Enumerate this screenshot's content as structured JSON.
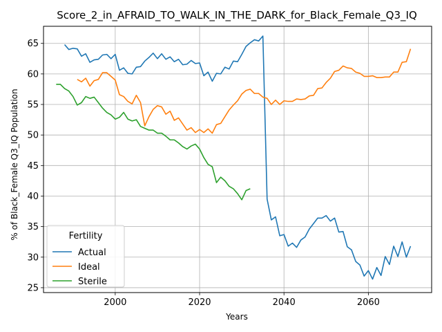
{
  "chart_data": {
    "type": "line",
    "title": "Score_2_in_AFRAID_TO_WALK_IN_THE_DARK_for_Black_Female_Q3_IQ",
    "xlabel": "Years",
    "ylabel": "% of Black_Female Q3_IQ Population",
    "xlim": [
      1983,
      2075
    ],
    "ylim": [
      24.2,
      67.8
    ],
    "xticks": [
      2000,
      2020,
      2040,
      2060
    ],
    "yticks": [
      25,
      30,
      35,
      40,
      45,
      50,
      55,
      60,
      65
    ],
    "grid": true,
    "legend": {
      "title": "Fertility",
      "placement": "lower-left"
    },
    "series": [
      {
        "name": "Actual",
        "color": "#1f77b4",
        "x": [
          1988,
          1989,
          1990,
          1991,
          1992,
          1993,
          1994,
          1995,
          1996,
          1997,
          1998,
          1999,
          2000,
          2001,
          2002,
          2003,
          2004,
          2005,
          2006,
          2007,
          2008,
          2009,
          2010,
          2011,
          2012,
          2013,
          2014,
          2015,
          2016,
          2017,
          2018,
          2019,
          2020,
          2021,
          2022,
          2023,
          2024,
          2025,
          2026,
          2027,
          2028,
          2029,
          2030,
          2031,
          2032,
          2033,
          2034,
          2035,
          2036,
          2037,
          2038,
          2039,
          2040,
          2041,
          2042,
          2043,
          2044,
          2045,
          2046,
          2047,
          2048,
          2049,
          2050,
          2051,
          2052,
          2053,
          2054,
          2055,
          2056,
          2057,
          2058,
          2059,
          2060,
          2061,
          2062,
          2063,
          2064,
          2065,
          2066,
          2067,
          2068,
          2069,
          2070
        ],
        "y": [
          64.8,
          64.0,
          64.2,
          64.1,
          62.9,
          63.3,
          61.9,
          62.3,
          62.4,
          63.1,
          63.2,
          62.5,
          63.2,
          60.6,
          61.0,
          60.1,
          60.0,
          61.1,
          61.2,
          62.1,
          62.7,
          63.4,
          62.5,
          63.3,
          62.4,
          62.8,
          62.0,
          62.4,
          61.5,
          61.6,
          62.2,
          61.7,
          61.8,
          59.7,
          60.3,
          58.8,
          60.1,
          60.0,
          61.1,
          60.8,
          62.1,
          62.0,
          63.2,
          64.5,
          65.1,
          65.6,
          65.4,
          66.2,
          39.5,
          36.1,
          36.6,
          33.5,
          33.7,
          31.8,
          32.3,
          31.6,
          32.8,
          33.3,
          34.6,
          35.5,
          36.4,
          36.4,
          36.8,
          35.9,
          36.4,
          34.1,
          34.2,
          31.7,
          31.2,
          29.3,
          28.7,
          26.9,
          27.8,
          26.4,
          28.3,
          27.0,
          30.1,
          28.8,
          31.8,
          30.1,
          32.5,
          30.0,
          31.8
        ]
      },
      {
        "name": "Ideal",
        "color": "#ff7f0e",
        "x": [
          1991,
          1992,
          1993,
          1994,
          1995,
          1996,
          1997,
          1998,
          1999,
          2000,
          2001,
          2002,
          2003,
          2004,
          2005,
          2006,
          2007,
          2008,
          2009,
          2010,
          2011,
          2012,
          2013,
          2014,
          2015,
          2016,
          2017,
          2018,
          2019,
          2020,
          2021,
          2022,
          2023,
          2024,
          2025,
          2026,
          2027,
          2028,
          2029,
          2030,
          2031,
          2032,
          2033,
          2034,
          2035,
          2036,
          2037,
          2038,
          2039,
          2040,
          2041,
          2042,
          2043,
          2044,
          2045,
          2046,
          2047,
          2048,
          2049,
          2050,
          2051,
          2052,
          2053,
          2054,
          2055,
          2056,
          2057,
          2058,
          2059,
          2060,
          2061,
          2062,
          2063,
          2064,
          2065,
          2066,
          2067,
          2068,
          2069,
          2070
        ],
        "y": [
          59.1,
          58.7,
          59.3,
          58.0,
          58.9,
          59.1,
          60.2,
          60.2,
          59.6,
          59.0,
          56.6,
          56.3,
          55.5,
          55.1,
          56.5,
          55.3,
          51.5,
          53.0,
          54.2,
          54.8,
          54.6,
          53.4,
          53.9,
          52.4,
          52.8,
          51.8,
          50.8,
          51.2,
          50.4,
          50.9,
          50.4,
          51.0,
          50.3,
          51.7,
          51.9,
          53.0,
          54.1,
          54.9,
          55.6,
          56.7,
          57.3,
          57.5,
          56.8,
          56.8,
          56.2,
          56.0,
          55.0,
          55.7,
          55.0,
          55.6,
          55.5,
          55.5,
          55.9,
          55.8,
          55.9,
          56.4,
          56.5,
          57.6,
          57.7,
          58.6,
          59.3,
          60.4,
          60.6,
          61.3,
          61.0,
          60.9,
          60.3,
          60.1,
          59.6,
          59.6,
          59.7,
          59.4,
          59.4,
          59.5,
          59.5,
          60.3,
          60.3,
          61.9,
          62.0,
          64.1
        ]
      },
      {
        "name": "Sterile",
        "color": "#2ca02c",
        "x": [
          1986,
          1987,
          1988,
          1989,
          1990,
          1991,
          1992,
          1993,
          1994,
          1995,
          1996,
          1997,
          1998,
          1999,
          2000,
          2001,
          2002,
          2003,
          2004,
          2005,
          2006,
          2007,
          2008,
          2009,
          2010,
          2011,
          2012,
          2013,
          2014,
          2015,
          2016,
          2017,
          2018,
          2019,
          2020,
          2021,
          2022,
          2023,
          2024,
          2025,
          2026,
          2027,
          2028,
          2029,
          2030,
          2031,
          2032
        ],
        "y": [
          58.3,
          58.3,
          57.6,
          57.2,
          56.3,
          54.9,
          55.3,
          56.3,
          56.0,
          56.2,
          55.3,
          54.4,
          53.7,
          53.3,
          52.6,
          52.9,
          53.7,
          52.6,
          52.3,
          52.5,
          51.4,
          51.1,
          50.8,
          50.8,
          50.3,
          50.3,
          49.8,
          49.2,
          49.2,
          48.7,
          48.1,
          47.7,
          48.2,
          48.5,
          47.7,
          46.3,
          45.2,
          44.8,
          42.2,
          43.1,
          42.5,
          41.6,
          41.2,
          40.4,
          39.4,
          40.9,
          41.2
        ]
      }
    ]
  }
}
